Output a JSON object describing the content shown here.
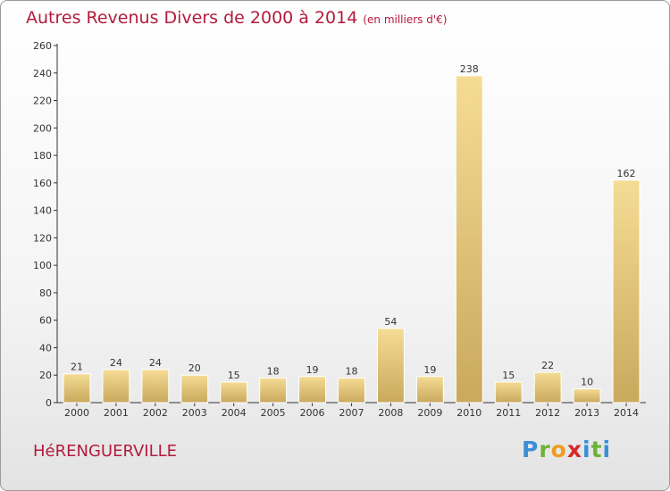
{
  "title": "Autres Revenus Divers de 2000 à 2014",
  "subtitle": "(en milliers d'€)",
  "place": "HéRENGUERVILLE",
  "logo": {
    "p": "P",
    "r": "r",
    "o": "o",
    "x": "x",
    "i": "i",
    "t": "t",
    "i2": "i"
  },
  "chart_data": {
    "type": "bar",
    "categories": [
      "2000",
      "2001",
      "2002",
      "2003",
      "2004",
      "2005",
      "2006",
      "2007",
      "2008",
      "2009",
      "2010",
      "2011",
      "2012",
      "2013",
      "2014"
    ],
    "values": [
      21,
      24,
      24,
      20,
      15,
      18,
      19,
      18,
      54,
      19,
      238,
      15,
      22,
      10,
      162
    ],
    "ylim": [
      0,
      260
    ],
    "yticks": [
      0,
      20,
      40,
      60,
      80,
      100,
      120,
      140,
      160,
      180,
      200,
      220,
      240,
      260
    ],
    "grid": false,
    "bar_color": "#e9c97a"
  }
}
